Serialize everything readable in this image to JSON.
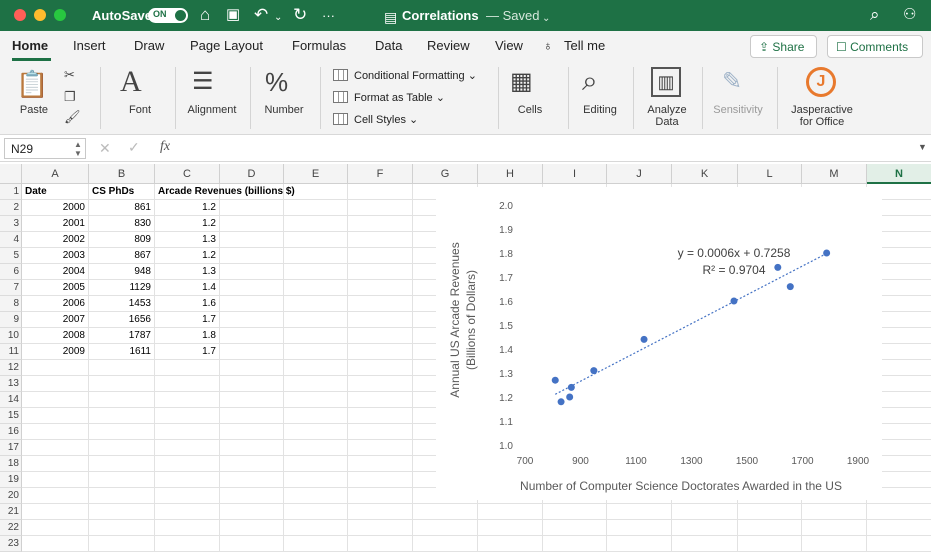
{
  "titlebar": {
    "autosave_label": "AutoSave",
    "autosave_state": "ON",
    "doc_title": "Correlations",
    "doc_status": "— Saved",
    "icons": [
      "home-icon",
      "save-icon",
      "undo-icon",
      "redo-icon",
      "more-icon",
      "search-icon",
      "share-person-icon"
    ],
    "colors": {
      "bar": "#1e7145",
      "close": "#ff5f57",
      "minimize": "#febc2e",
      "zoom": "#28c840"
    }
  },
  "tabs": [
    {
      "label": "Home"
    },
    {
      "label": "Insert"
    },
    {
      "label": "Draw"
    },
    {
      "label": "Page Layout"
    },
    {
      "label": "Formulas"
    },
    {
      "label": "Data"
    },
    {
      "label": "Review"
    },
    {
      "label": "View"
    },
    {
      "label": "Tell me"
    }
  ],
  "actions": {
    "share_label": "Share",
    "comments_label": "Comments"
  },
  "ribbon": {
    "paste": "Paste",
    "font": "Font",
    "alignment": "Alignment",
    "number": "Number",
    "conditional_formatting": "Conditional Formatting",
    "format_as_table": "Format as Table",
    "cell_styles": "Cell Styles",
    "cells": "Cells",
    "editing": "Editing",
    "analyze_data": "Analyze Data",
    "sensitivity": "Sensitivity",
    "jasperactive": "Jasperactive for Office",
    "jasperactive_letter": "J"
  },
  "formula_bar": {
    "name_box": "N29",
    "fx": "fx",
    "value": ""
  },
  "sheet": {
    "columns": [
      "A",
      "B",
      "C",
      "D",
      "E",
      "F",
      "G",
      "H",
      "I",
      "J",
      "K",
      "L",
      "M",
      "N"
    ],
    "selected_column": "N",
    "row_numbers": [
      "1",
      "2",
      "3",
      "4",
      "5",
      "6",
      "7",
      "8",
      "9",
      "10",
      "11",
      "12",
      "13",
      "14",
      "15",
      "16",
      "17",
      "18",
      "19",
      "20",
      "21",
      "22",
      "23"
    ],
    "headers": [
      "Date",
      "CS PhDs",
      "Arcade Revenues (billions $)"
    ],
    "rows": [
      [
        "2000",
        "861",
        "1.2"
      ],
      [
        "2001",
        "830",
        "1.2"
      ],
      [
        "2002",
        "809",
        "1.3"
      ],
      [
        "2003",
        "867",
        "1.2"
      ],
      [
        "2004",
        "948",
        "1.3"
      ],
      [
        "2005",
        "1129",
        "1.4"
      ],
      [
        "2006",
        "1453",
        "1.6"
      ],
      [
        "2007",
        "1656",
        "1.7"
      ],
      [
        "2008",
        "1787",
        "1.8"
      ],
      [
        "2009",
        "1611",
        "1.7"
      ]
    ]
  },
  "chart_data": {
    "type": "scatter",
    "title": "",
    "xlabel": "Number of Computer Science Doctorates Awarded in the US",
    "ylabel_line1": "Annual US Arcade Revenues",
    "ylabel_line2": "(Billions of Dollars)",
    "xlim": [
      700,
      1900
    ],
    "ylim": [
      1.0,
      2.0
    ],
    "xticks": [
      700,
      900,
      1100,
      1300,
      1500,
      1700,
      1900
    ],
    "yticks": [
      "1.0",
      "1.1",
      "1.2",
      "1.3",
      "1.4",
      "1.5",
      "1.6",
      "1.7",
      "1.8",
      "1.9",
      "2.0"
    ],
    "points": [
      {
        "x": 861,
        "y": 1.2
      },
      {
        "x": 830,
        "y": 1.18
      },
      {
        "x": 809,
        "y": 1.27
      },
      {
        "x": 867,
        "y": 1.24
      },
      {
        "x": 948,
        "y": 1.31
      },
      {
        "x": 1129,
        "y": 1.44
      },
      {
        "x": 1453,
        "y": 1.6
      },
      {
        "x": 1656,
        "y": 1.66
      },
      {
        "x": 1787,
        "y": 1.8
      },
      {
        "x": 1611,
        "y": 1.74
      }
    ],
    "trendline": {
      "slope": 0.0006,
      "intercept": 0.7258,
      "x_range": [
        809,
        1787
      ]
    },
    "equation": "y = 0.0006x + 0.7258",
    "r_squared": "R² = 0.9704",
    "grid": false,
    "colors": {
      "points": "#4472c4",
      "trend": "#4472c4"
    }
  }
}
